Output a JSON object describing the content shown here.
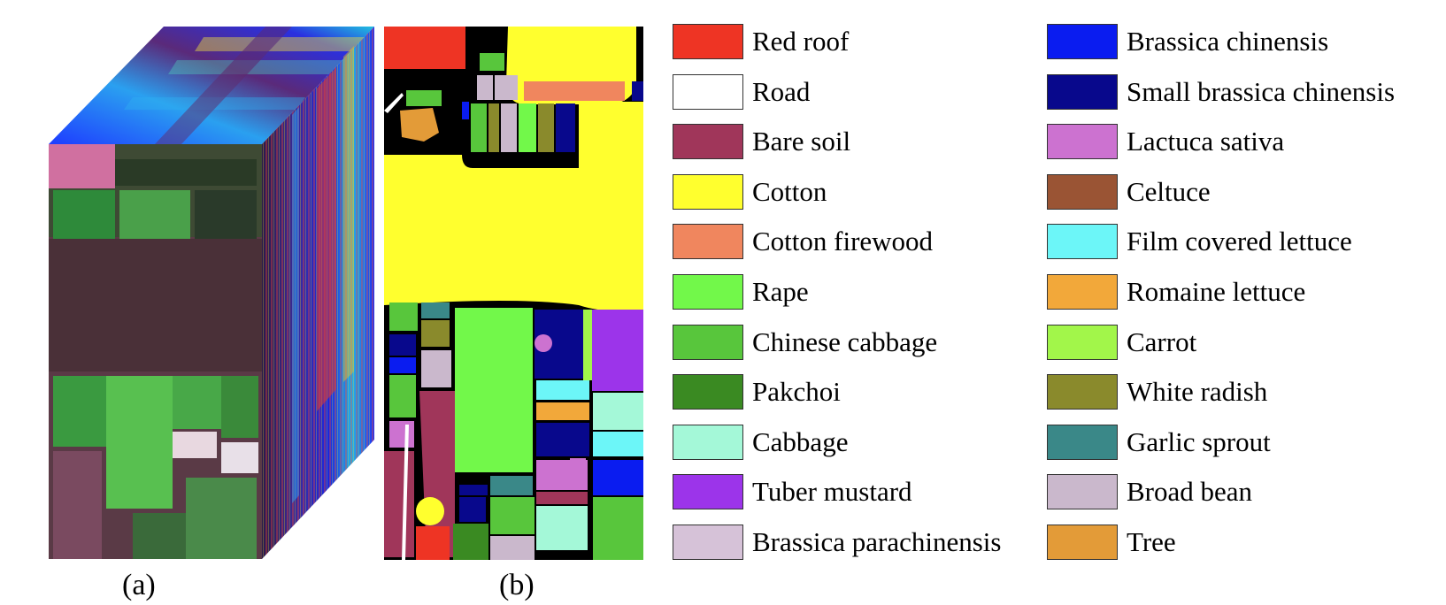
{
  "captions": {
    "a": "(a)",
    "b": "(b)"
  },
  "legend": [
    {
      "label": "Red roof",
      "color": "#ee3424"
    },
    {
      "label": "Road",
      "color": "#ffffff"
    },
    {
      "label": "Bare soil",
      "color": "#a0365a"
    },
    {
      "label": "Cotton",
      "color": "#ffff2e"
    },
    {
      "label": "Cotton firewood",
      "color": "#f0865e"
    },
    {
      "label": "Rape",
      "color": "#72f84a"
    },
    {
      "label": "Chinese cabbage",
      "color": "#58c63c"
    },
    {
      "label": "Pakchoi",
      "color": "#3a8a22"
    },
    {
      "label": "Cabbage",
      "color": "#a4f8d8"
    },
    {
      "label": "Tuber mustard",
      "color": "#9c34ea"
    },
    {
      "label": "Brassica parachinensis",
      "color": "#d6c2d8"
    },
    {
      "label": "Brassica chinensis",
      "color": "#0a1cf0"
    },
    {
      "label": "Small brassica chinensis",
      "color": "#08088c"
    },
    {
      "label": "Lactuca sativa",
      "color": "#cc72d0"
    },
    {
      "label": "Celtuce",
      "color": "#9a5434"
    },
    {
      "label": "Film covered lettuce",
      "color": "#6cf6f8"
    },
    {
      "label": "Romaine lettuce",
      "color": "#f2a83a"
    },
    {
      "label": "Carrot",
      "color": "#a2f64a"
    },
    {
      "label": "White radish",
      "color": "#8a8a2c"
    },
    {
      "label": "Garlic sprout",
      "color": "#3a8888"
    },
    {
      "label": "Broad bean",
      "color": "#cab8cc"
    },
    {
      "label": "Tree",
      "color": "#e39b38"
    }
  ]
}
